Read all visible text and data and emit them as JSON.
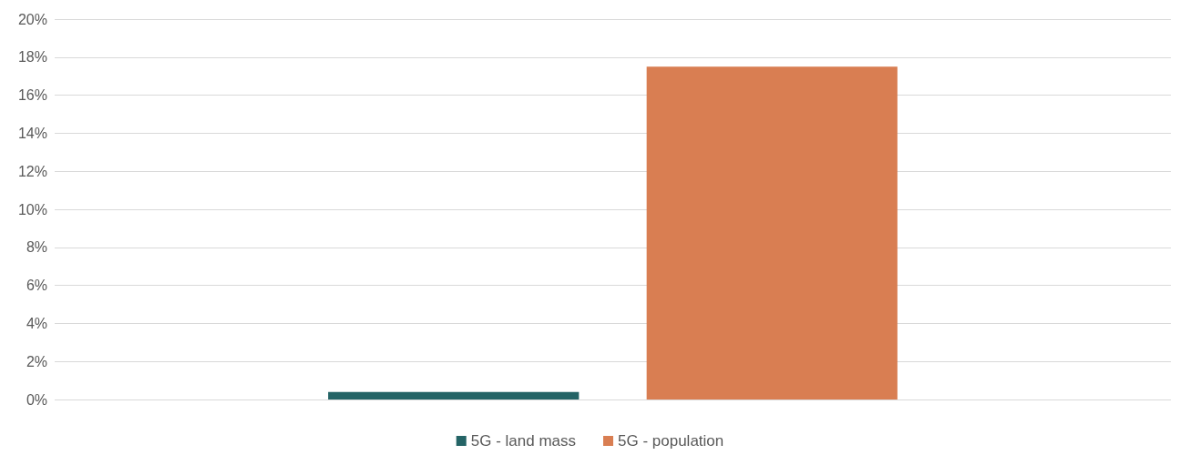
{
  "chart_data": {
    "type": "bar",
    "categories": [
      null
    ],
    "series": [
      {
        "name": "5G - land mass",
        "color": "#246466",
        "values": [
          0.4
        ]
      },
      {
        "name": "5G - population",
        "color": "#d97e52",
        "values": [
          17.5
        ]
      }
    ],
    "ylim": [
      0,
      20
    ],
    "yticks": [
      {
        "value": 0,
        "label": "0%"
      },
      {
        "value": 2,
        "label": "2%"
      },
      {
        "value": 4,
        "label": "4%"
      },
      {
        "value": 6,
        "label": "6%"
      },
      {
        "value": 8,
        "label": "8%"
      },
      {
        "value": 10,
        "label": "10%"
      },
      {
        "value": 12,
        "label": "12%"
      },
      {
        "value": 14,
        "label": "14%"
      },
      {
        "value": 16,
        "label": "16%"
      },
      {
        "value": 18,
        "label": "18%"
      },
      {
        "value": 20,
        "label": "20%"
      }
    ],
    "grid": "y",
    "legend": "bottom"
  }
}
